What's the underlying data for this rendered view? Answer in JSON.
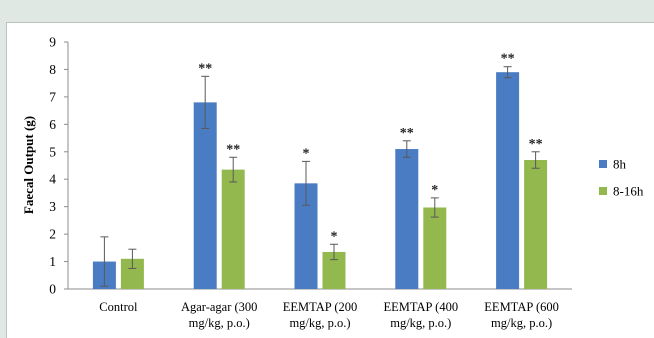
{
  "chart_data": {
    "type": "bar",
    "ylabel": "Faecal Output (g)",
    "xlabel": "",
    "ylim": [
      0,
      9
    ],
    "yticks": [
      "0",
      "1",
      "2",
      "3",
      "4",
      "5",
      "6",
      "7",
      "8",
      "9"
    ],
    "grid": false,
    "legend_position": "right",
    "categories": [
      [
        "Control"
      ],
      [
        "Agar-agar (300",
        "mg/kg, p.o.)"
      ],
      [
        "EEMTAP (200",
        "mg/kg, p.o.)"
      ],
      [
        "EEMTAP (400",
        "mg/kg, p.o.)"
      ],
      [
        "EEMTAP (600",
        "mg/kg, p.o.)"
      ]
    ],
    "series": [
      {
        "name": "8h",
        "color": "#4a7cc3",
        "values": [
          1.0,
          6.8,
          3.85,
          5.1,
          7.9
        ],
        "errors": [
          0.9,
          0.95,
          0.8,
          0.3,
          0.2
        ],
        "annotations": [
          "",
          "**",
          "*",
          "**",
          "**"
        ]
      },
      {
        "name": "8-16h",
        "color": "#93b84d",
        "values": [
          1.1,
          4.35,
          1.35,
          2.97,
          4.7
        ],
        "errors": [
          0.35,
          0.45,
          0.28,
          0.35,
          0.3
        ],
        "annotations": [
          "",
          "**",
          "*",
          "*",
          "**"
        ]
      }
    ]
  }
}
